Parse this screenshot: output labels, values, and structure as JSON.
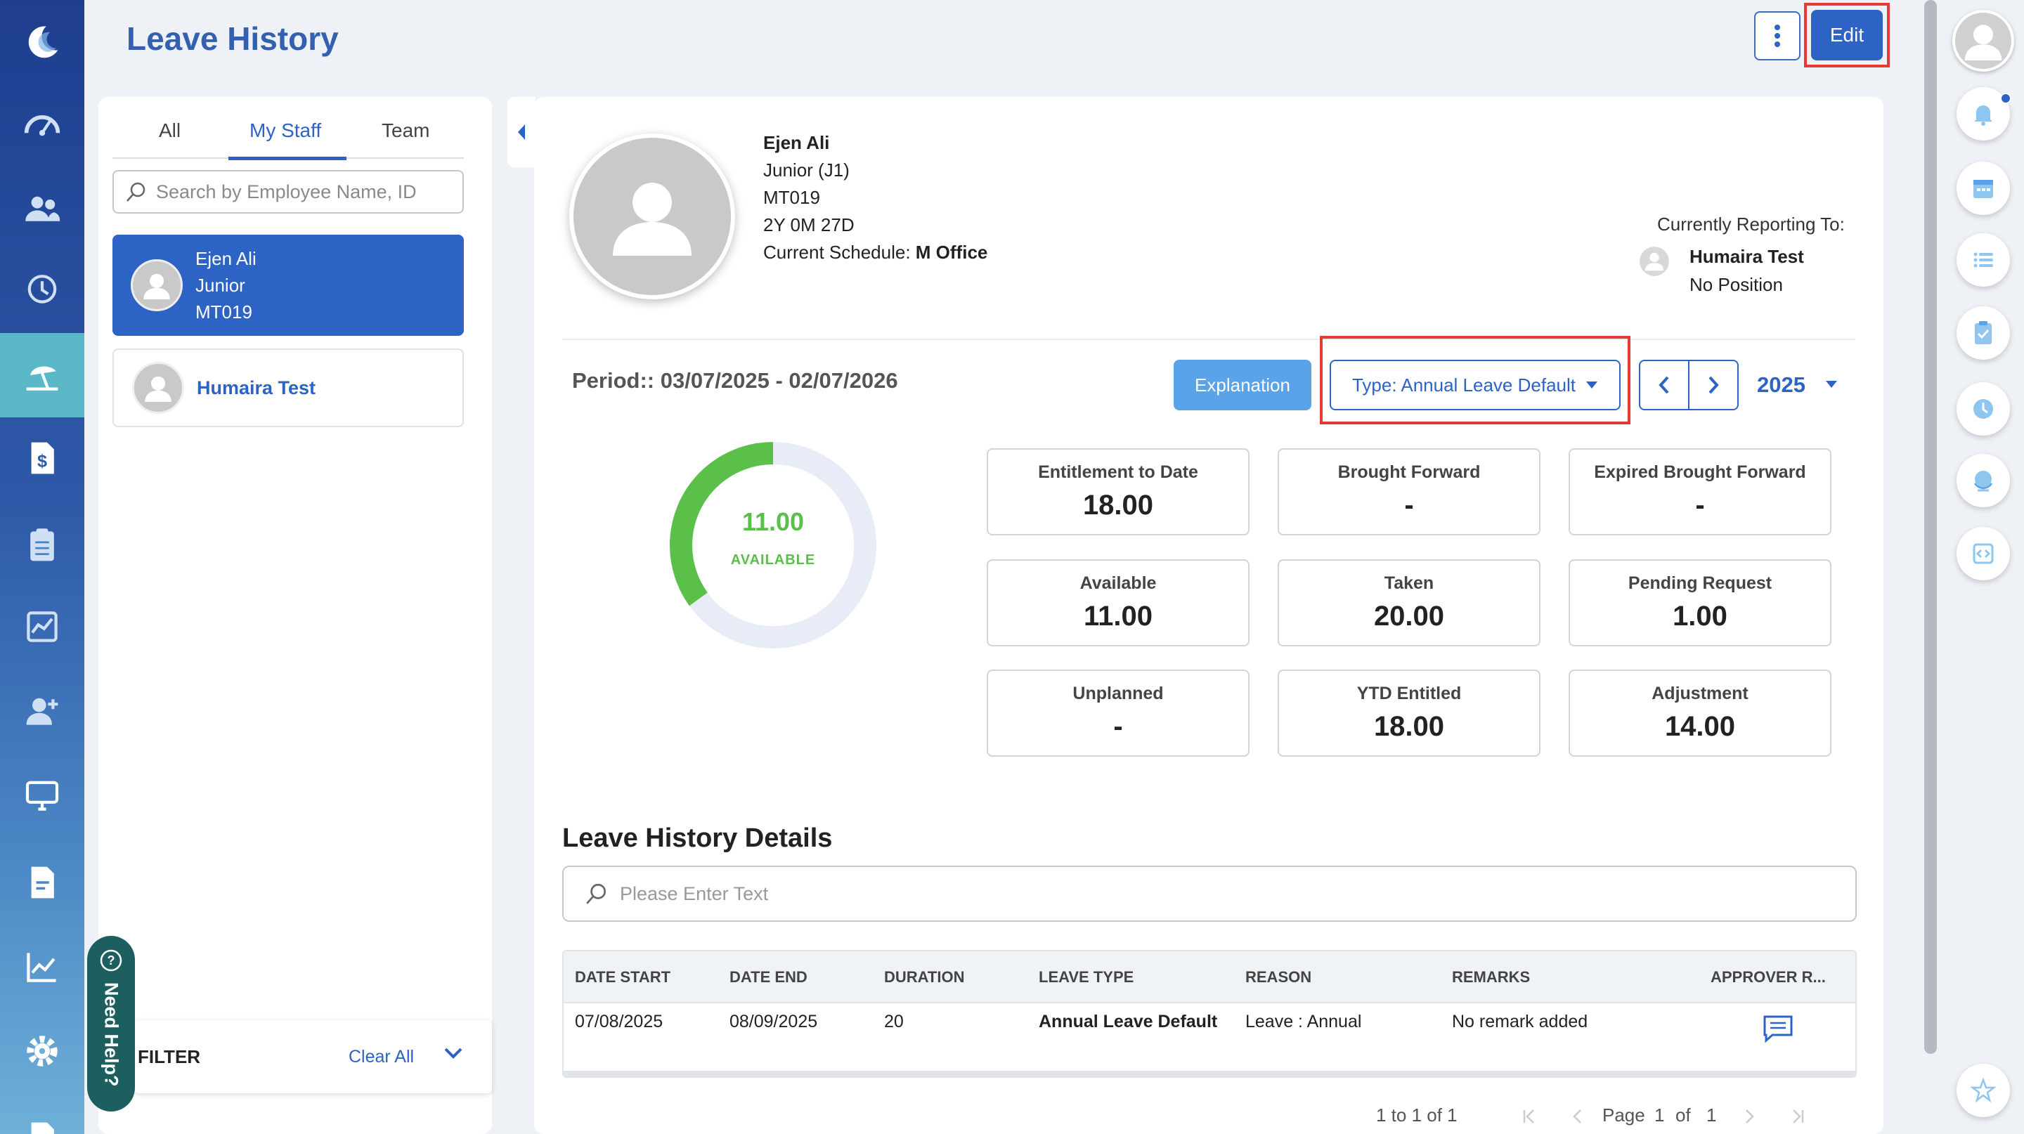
{
  "header": {
    "title": "Leave History",
    "edit_label": "Edit"
  },
  "staff_panel": {
    "tabs": [
      "All",
      "My Staff",
      "Team"
    ],
    "search_placeholder": "Search by Employee Name, ID",
    "staff": [
      {
        "name": "Ejen Ali",
        "position": "Junior",
        "id": "MT019"
      },
      {
        "name": "Humaira Test"
      }
    ],
    "filter_label": "FILTER",
    "clear_all_label": "Clear All"
  },
  "need_help_label": "Need Help?",
  "profile": {
    "name": "Ejen Ali",
    "position": "Junior (J1)",
    "id": "MT019",
    "tenure": "2Y 0M 27D",
    "schedule_label": "Current Schedule:",
    "schedule_value": "M Office",
    "reporting_label": "Currently Reporting To:",
    "reporting_name": "Humaira Test",
    "reporting_position": "No Position"
  },
  "controls": {
    "period": "Period:: 03/07/2025 - 02/07/2026",
    "explanation_label": "Explanation",
    "type_label": "Type: Annual Leave Default",
    "year": "2025"
  },
  "summary": {
    "available_value": "11.00",
    "available_label": "AVAILABLE",
    "available_fraction": 0.35,
    "colors": {
      "available": "#5ac04a",
      "remaining": "#e8ecf6"
    }
  },
  "stats": [
    {
      "label": "Entitlement to Date",
      "value": "18.00"
    },
    {
      "label": "Brought Forward",
      "value": "-"
    },
    {
      "label": "Expired Brought Forward",
      "value": "-"
    },
    {
      "label": "Available",
      "value": "11.00"
    },
    {
      "label": "Taken",
      "value": "20.00"
    },
    {
      "label": "Pending Request",
      "value": "1.00"
    },
    {
      "label": "Unplanned",
      "value": "-"
    },
    {
      "label": "YTD Entitled",
      "value": "18.00"
    },
    {
      "label": "Adjustment",
      "value": "14.00"
    }
  ],
  "details": {
    "title": "Leave History Details",
    "search_placeholder": "Please Enter Text",
    "columns": [
      "DATE START",
      "DATE END",
      "DURATION",
      "LEAVE TYPE",
      "REASON",
      "REMARKS",
      "APPROVER R..."
    ],
    "rows": [
      {
        "date_start": "07/08/2025",
        "date_end": "08/09/2025",
        "duration": "20",
        "leave_type": "Annual Leave Default",
        "reason": "Leave : Annual",
        "remarks": "No remark added",
        "approver_icon": "comment-icon"
      }
    ]
  },
  "pagination": {
    "range": "1 to 1 of 1",
    "page_label": "Page",
    "page": "1",
    "of_label": "of",
    "total": "1"
  }
}
